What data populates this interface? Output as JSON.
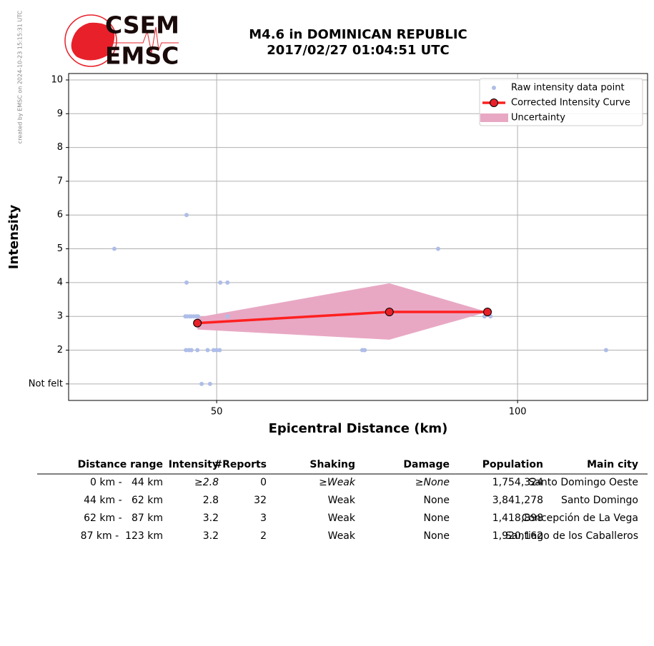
{
  "credit": "created by EMSC on 2024-10-23 15:15:31 UTC",
  "logo": [
    "CSEM",
    "EMSC"
  ],
  "chart_data": {
    "type": "scatter",
    "title": [
      "M4.6 in DOMINICAN REPUBLIC",
      "2017/02/27 01:04:51 UTC"
    ],
    "xlabel": "Epicentral Distance (km)",
    "ylabel": "Intensity",
    "xlim": [
      25.4,
      121.6
    ],
    "ylim": [
      0.51,
      10.19
    ],
    "xticks": [
      50,
      100
    ],
    "yticks": [
      {
        "value": 1,
        "label": "Not felt"
      },
      2,
      3,
      4,
      5,
      6,
      7,
      8,
      9,
      10
    ],
    "grid": true,
    "legend": "upper right",
    "series": [
      {
        "name": "Raw intensity data point",
        "type": "scatter",
        "color": "#aebde8",
        "x": [
          33.0,
          45.0,
          45.0,
          50.6,
          51.8,
          86.8,
          44.8,
          45.1,
          45.5,
          45.8,
          46.2,
          46.6,
          46.9,
          51.8,
          94.5,
          95.5,
          44.9,
          45.4,
          45.8,
          46.8,
          48.5,
          49.5,
          50.0,
          50.5,
          74.2,
          74.6,
          114.7,
          47.5,
          48.9
        ],
        "values": [
          5,
          6,
          4,
          4,
          4,
          5,
          3,
          3,
          3,
          3,
          3,
          3,
          3,
          3,
          3,
          3,
          2,
          2,
          2,
          2,
          2,
          2,
          2,
          2,
          2,
          2,
          2,
          1,
          1
        ]
      },
      {
        "name": "Corrected Intensity Curve",
        "type": "line",
        "color": "#ff2020",
        "marker_color": "#e8202a",
        "x": [
          46.8,
          78.7,
          95.0
        ],
        "values": [
          2.8,
          3.13,
          3.13
        ]
      }
    ],
    "uncertainty": {
      "name": "Uncertainty",
      "color": "#e8a8c4",
      "x": [
        46.8,
        78.7,
        95.0
      ],
      "upper": [
        2.97,
        3.98,
        3.13
      ],
      "lower": [
        2.61,
        2.31,
        3.13
      ]
    }
  },
  "table": {
    "header": [
      "Distance range",
      "Intensity",
      "#Reports",
      "Shaking",
      "Damage",
      "Population",
      "Main city"
    ],
    "rows": [
      [
        "0 km -   44 km",
        "≥2.8",
        "0",
        "≥Weak",
        "≥None",
        "1,754,324",
        "Santo Domingo Oeste"
      ],
      [
        "44 km -   62 km",
        "2.8",
        "32",
        "Weak",
        "None",
        "3,841,278",
        "Santo Domingo"
      ],
      [
        "62 km -   87 km",
        "3.2",
        "3",
        "Weak",
        "None",
        "1,418,898",
        "Concepción de La Vega"
      ],
      [
        "87 km -  123 km",
        "3.2",
        "2",
        "Weak",
        "None",
        "1,920,162",
        "Santiago de los Caballeros"
      ]
    ]
  }
}
